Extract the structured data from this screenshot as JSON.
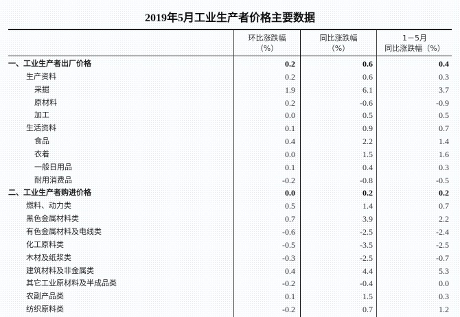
{
  "title": "2019年5月工业生产者价格主要数据",
  "headers": {
    "col1_line1": "环比涨跌幅",
    "col1_line2": "（%）",
    "col2_line1": "同比涨跌幅",
    "col2_line2": "（%）",
    "col3_line1": "1－5月",
    "col3_line2": "同比涨跌幅（%）"
  },
  "rows": [
    {
      "label": "一、工业生产者出厂价格",
      "level": 0,
      "bold": true,
      "mom": "0.2",
      "yoy": "0.6",
      "ytd": "0.4"
    },
    {
      "label": "生产资料",
      "level": 1,
      "mom": "0.2",
      "yoy": "0.6",
      "ytd": "0.3"
    },
    {
      "label": "采掘",
      "level": 2,
      "mom": "1.9",
      "yoy": "6.1",
      "ytd": "3.7"
    },
    {
      "label": "原材料",
      "level": 2,
      "mom": "0.2",
      "yoy": "-0.6",
      "ytd": "-0.9"
    },
    {
      "label": "加工",
      "level": 2,
      "mom": "0.0",
      "yoy": "0.5",
      "ytd": "0.5"
    },
    {
      "label": "生活资料",
      "level": 1,
      "mom": "0.1",
      "yoy": "0.9",
      "ytd": "0.7"
    },
    {
      "label": "食品",
      "level": 2,
      "mom": "0.4",
      "yoy": "2.2",
      "ytd": "1.4"
    },
    {
      "label": "衣着",
      "level": 2,
      "mom": "0.0",
      "yoy": "1.5",
      "ytd": "1.6"
    },
    {
      "label": "一般日用品",
      "level": 2,
      "mom": "0.1",
      "yoy": "0.4",
      "ytd": "0.3"
    },
    {
      "label": "耐用消费品",
      "level": 2,
      "mom": "-0.2",
      "yoy": "-0.8",
      "ytd": "-0.5"
    },
    {
      "label": "二、工业生产者购进价格",
      "level": 0,
      "bold": true,
      "mom": "0.0",
      "yoy": "0.2",
      "ytd": "0.2"
    },
    {
      "label": "燃料、动力类",
      "level": 1,
      "mom": "0.5",
      "yoy": "1.4",
      "ytd": "0.7"
    },
    {
      "label": "黑色金属材料类",
      "level": 1,
      "mom": "0.7",
      "yoy": "3.9",
      "ytd": "2.2"
    },
    {
      "label": "有色金属材料及电线类",
      "level": 1,
      "mom": "-0.6",
      "yoy": "-2.5",
      "ytd": "-2.4"
    },
    {
      "label": "化工原料类",
      "level": 1,
      "mom": "-0.5",
      "yoy": "-3.5",
      "ytd": "-2.5"
    },
    {
      "label": "木材及纸浆类",
      "level": 1,
      "mom": "-0.3",
      "yoy": "-2.5",
      "ytd": "-0.7"
    },
    {
      "label": "建筑材料及非金属类",
      "level": 1,
      "mom": "0.4",
      "yoy": "4.4",
      "ytd": "5.3"
    },
    {
      "label": "其它工业原材料及半成品类",
      "level": 1,
      "mom": "-0.2",
      "yoy": "-0.4",
      "ytd": "0.0"
    },
    {
      "label": "农副产品类",
      "level": 1,
      "mom": "0.1",
      "yoy": "1.5",
      "ytd": "0.3"
    },
    {
      "label": "纺织原料类",
      "level": 1,
      "mom": "-0.2",
      "yoy": "0.7",
      "ytd": "1.2"
    }
  ]
}
